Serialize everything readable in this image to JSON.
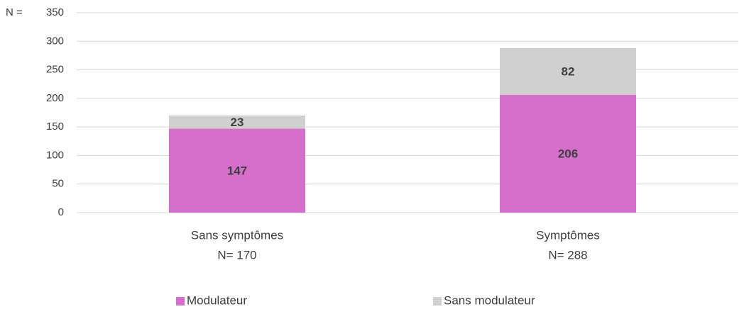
{
  "chart_data": {
    "type": "stacked_bar",
    "y_label": "N =",
    "categories": [
      [
        "Sans symptômes",
        "N= 170"
      ],
      [
        "Symptômes",
        "N= 288"
      ]
    ],
    "series": [
      {
        "name": "Modulateur",
        "color": "#d66ecb",
        "values": [
          147,
          206
        ]
      },
      {
        "name": "Sans modulateur",
        "color": "#d0d0d0",
        "values": [
          23,
          82
        ]
      }
    ],
    "ylim": [
      0,
      350
    ],
    "yticks": [
      0,
      50,
      100,
      150,
      200,
      250,
      300,
      350
    ],
    "grid": true,
    "legend": "bottom"
  }
}
